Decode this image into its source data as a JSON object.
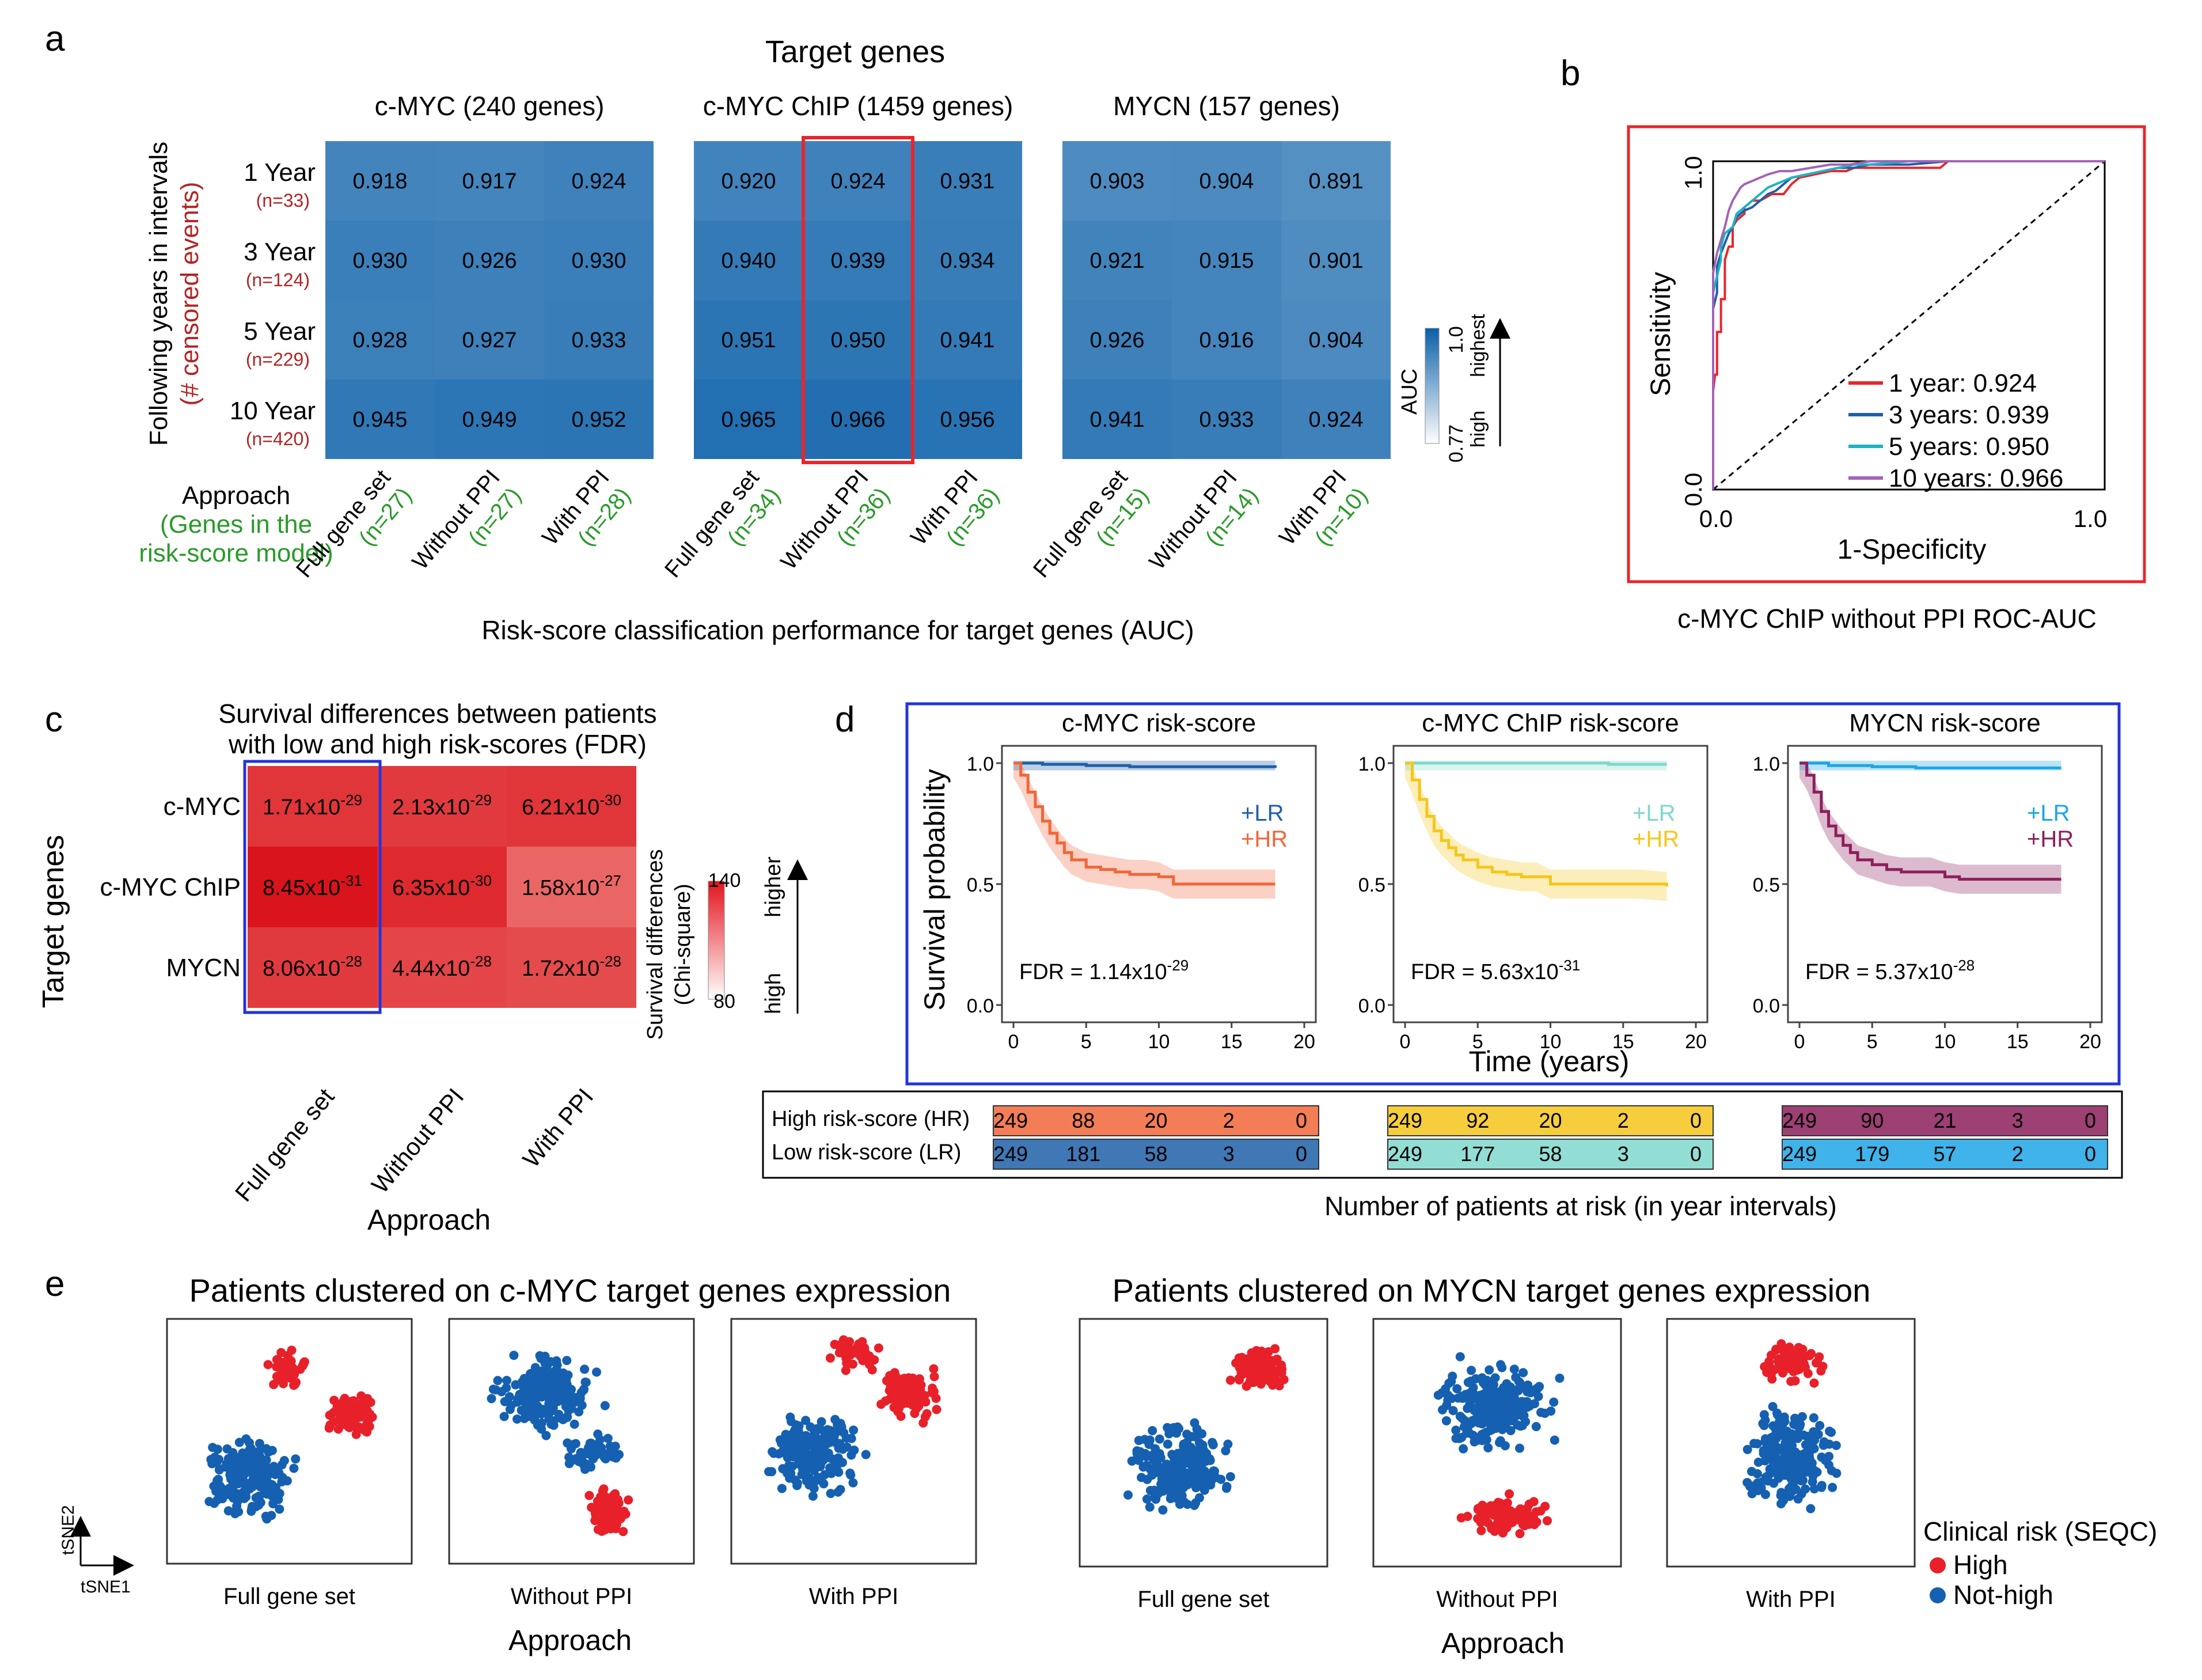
{
  "panel_letters": [
    "a",
    "b",
    "c",
    "d",
    "e"
  ],
  "chart_data": [
    {
      "panel": "a",
      "type": "heatmap",
      "title": "Target genes",
      "xlabel": "Risk-score classification performance for target genes (AUC)",
      "ylabel": "Following years in intervals",
      "ylabel2": "(# censored events)",
      "approach_label": "Approach",
      "approach_sub1": "(Genes in the",
      "approach_sub2": "risk-score model)",
      "rows": [
        {
          "label": "1 Year",
          "n": "(n=33)"
        },
        {
          "label": "3 Year",
          "n": "(n=124)"
        },
        {
          "label": "5 Year",
          "n": "(n=229)"
        },
        {
          "label": "10 Year",
          "n": "(n=420)"
        }
      ],
      "color_range": [
        0.77,
        1.0
      ],
      "legend": {
        "title": "AUC",
        "max_label": "1.0",
        "min_label": "0.77",
        "up_label": "highest",
        "down_label": "high"
      },
      "blocks": [
        {
          "title": "c-MYC (240 genes)",
          "columns": [
            {
              "name": "Full gene set",
              "n": "(n=27)"
            },
            {
              "name": "Without PPI",
              "n": "(n=27)"
            },
            {
              "name": "With PPI",
              "n": "(n=28)"
            }
          ],
          "values": [
            [
              0.918,
              0.917,
              0.924
            ],
            [
              0.93,
              0.926,
              0.93
            ],
            [
              0.928,
              0.927,
              0.933
            ],
            [
              0.945,
              0.949,
              0.952
            ]
          ]
        },
        {
          "title": "c-MYC ChIP (1459 genes)",
          "columns": [
            {
              "name": "Full gene set",
              "n": "(n=34)"
            },
            {
              "name": "Without PPI",
              "n": "(n=36)"
            },
            {
              "name": "With PPI",
              "n": "(n=36)"
            }
          ],
          "values": [
            [
              0.92,
              0.924,
              0.931
            ],
            [
              0.94,
              0.939,
              0.934
            ],
            [
              0.951,
              0.95,
              0.941
            ],
            [
              0.965,
              0.966,
              0.956
            ]
          ],
          "highlight_col": 1
        },
        {
          "title": "MYCN (157 genes)",
          "columns": [
            {
              "name": "Full gene set",
              "n": "(n=15)"
            },
            {
              "name": "Without PPI",
              "n": "(n=14)"
            },
            {
              "name": "With PPI",
              "n": "(n=10)"
            }
          ],
          "values": [
            [
              0.903,
              0.904,
              0.891
            ],
            [
              0.921,
              0.915,
              0.901
            ],
            [
              0.926,
              0.916,
              0.904
            ],
            [
              0.941,
              0.933,
              0.924
            ]
          ]
        }
      ]
    },
    {
      "panel": "b",
      "type": "line",
      "xlabel": "1-Specificity",
      "ylabel": "Sensitivity",
      "xlim": [
        0,
        1
      ],
      "ylim": [
        0,
        1
      ],
      "x_ticks": [
        "0.0",
        "1.0"
      ],
      "y_ticks": [
        "0.0",
        "1.0"
      ],
      "caption": "c-MYC ChIP without PPI ROC-AUC",
      "series": [
        {
          "name": "1 year: 0.924",
          "color": "#e8262b",
          "x": [
            0,
            0,
            0.005,
            0.01,
            0.01,
            0.02,
            0.02,
            0.03,
            0.03,
            0.04,
            0.05,
            0.05,
            0.06,
            0.08,
            0.08,
            0.1,
            0.12,
            0.15,
            0.18,
            0.2,
            0.22,
            0.26,
            0.3,
            0.34,
            0.36,
            0.4,
            0.45,
            0.5,
            0.55,
            0.58,
            0.6,
            0.65,
            0.7,
            0.8,
            0.9,
            1
          ],
          "y": [
            0,
            0.3,
            0.35,
            0.35,
            0.48,
            0.48,
            0.58,
            0.58,
            0.7,
            0.74,
            0.74,
            0.8,
            0.82,
            0.84,
            0.86,
            0.88,
            0.88,
            0.9,
            0.9,
            0.93,
            0.95,
            0.96,
            0.97,
            0.97,
            0.98,
            0.98,
            0.98,
            0.98,
            0.98,
            0.98,
            1,
            1,
            1,
            1,
            1,
            1
          ]
        },
        {
          "name": "3 years: 0.939",
          "color": "#1f5fa8",
          "x": [
            0,
            0,
            0.01,
            0.01,
            0.02,
            0.03,
            0.04,
            0.05,
            0.06,
            0.08,
            0.1,
            0.12,
            0.14,
            0.16,
            0.18,
            0.2,
            0.24,
            0.28,
            0.32,
            0.36,
            0.4,
            0.5,
            0.6,
            0.7,
            0.8,
            1
          ],
          "y": [
            0,
            0.55,
            0.6,
            0.68,
            0.72,
            0.75,
            0.78,
            0.8,
            0.83,
            0.85,
            0.86,
            0.88,
            0.9,
            0.91,
            0.93,
            0.95,
            0.96,
            0.97,
            0.98,
            0.98,
            0.99,
            0.99,
            1,
            1,
            1,
            1
          ]
        },
        {
          "name": "5 years: 0.950",
          "color": "#1fb3c2",
          "x": [
            0,
            0,
            0.01,
            0.02,
            0.02,
            0.03,
            0.05,
            0.06,
            0.08,
            0.1,
            0.12,
            0.14,
            0.16,
            0.2,
            0.24,
            0.28,
            0.32,
            0.36,
            0.4,
            0.5,
            0.6,
            0.7,
            1
          ],
          "y": [
            0,
            0.6,
            0.65,
            0.7,
            0.74,
            0.78,
            0.8,
            0.84,
            0.86,
            0.88,
            0.9,
            0.92,
            0.93,
            0.95,
            0.96,
            0.97,
            0.98,
            0.99,
            0.99,
            1,
            1,
            1,
            1
          ]
        },
        {
          "name": "10 years: 0.966",
          "color": "#a363b6",
          "x": [
            0,
            0,
            0.01,
            0.02,
            0.03,
            0.04,
            0.05,
            0.06,
            0.07,
            0.08,
            0.1,
            0.12,
            0.14,
            0.17,
            0.2,
            0.25,
            0.3,
            0.35,
            0.4,
            0.5,
            0.6,
            0.8,
            1
          ],
          "y": [
            0,
            0.66,
            0.72,
            0.76,
            0.8,
            0.85,
            0.88,
            0.9,
            0.92,
            0.93,
            0.94,
            0.95,
            0.96,
            0.97,
            0.97,
            0.98,
            0.99,
            0.99,
            1,
            1,
            1,
            1,
            1
          ]
        }
      ]
    },
    {
      "panel": "c",
      "type": "heatmap",
      "title_line1": "Survival differences between patients",
      "title_line2": "with low and high risk-scores (FDR)",
      "ylabel": "Target genes",
      "xlabel": "Approach",
      "rows": [
        "c-MYC",
        "c-MYC ChIP",
        "MYCN"
      ],
      "columns": [
        "Full gene set",
        "Without PPI",
        "With PPI"
      ],
      "mantissa": [
        [
          "1.71",
          "2.13",
          "6.21"
        ],
        [
          "8.45",
          "6.35",
          "1.58"
        ],
        [
          "8.06",
          "4.44",
          "1.72"
        ]
      ],
      "exponent": [
        [
          "-29",
          "-29",
          "-30"
        ],
        [
          "-31",
          "-30",
          "-27"
        ],
        [
          "-28",
          "-28",
          "-28"
        ]
      ],
      "chi_square": [
        [
          128,
          126,
          128
        ],
        [
          140,
          132,
          110
        ],
        [
          126,
          122,
          120
        ]
      ],
      "color_range": [
        80,
        140
      ],
      "legend": {
        "title_line1": "Survival differences",
        "title_line2": "(Chi-square)",
        "max_label": "140",
        "min_label": "80",
        "up_label": "higher",
        "down_label": "high"
      },
      "highlight_col": 0
    },
    {
      "panel": "d",
      "type": "line",
      "xlabel": "Time (years)",
      "ylabel": "Survival probability",
      "xlim": [
        0,
        20
      ],
      "ylim": [
        0,
        1
      ],
      "x_ticks": [
        "0",
        "5",
        "10",
        "15",
        "20"
      ],
      "y_ticks": [
        "0.0",
        "0.5",
        "1.0"
      ],
      "subplots": [
        {
          "title": "c-MYC risk-score",
          "fdr_mantissa": "1.14",
          "fdr_exp": "-29",
          "lr_color": "#1f5fa8",
          "hr_color": "#f0663a",
          "lr": {
            "x": [
              0,
              2,
              5,
              8,
              12,
              18
            ],
            "y": [
              1,
              0.995,
              0.99,
              0.985,
              0.985,
              0.98
            ]
          },
          "hr": {
            "x": [
              0,
              0.5,
              1,
              1.5,
              2,
              2.5,
              3,
              3.5,
              4,
              5,
              6,
              7,
              8,
              9,
              10,
              11,
              12,
              14,
              16,
              18
            ],
            "y": [
              1,
              0.95,
              0.88,
              0.82,
              0.76,
              0.71,
              0.67,
              0.63,
              0.6,
              0.57,
              0.56,
              0.55,
              0.54,
              0.54,
              0.53,
              0.5,
              0.5,
              0.5,
              0.5,
              0.5
            ]
          },
          "lr_label": "LR",
          "hr_label": "HR"
        },
        {
          "title": "c-MYC ChIP risk-score",
          "fdr_mantissa": "5.63",
          "fdr_exp": "-31",
          "lr_color": "#7fd8cc",
          "hr_color": "#f5c61b",
          "lr": {
            "x": [
              0,
              3,
              6,
              10,
              14,
              18
            ],
            "y": [
              1,
              1,
              1,
              1,
              0.995,
              0.995
            ]
          },
          "hr": {
            "x": [
              0,
              0.5,
              1,
              1.5,
              2,
              2.5,
              3,
              3.5,
              4,
              5,
              6,
              7,
              8,
              9,
              10,
              11,
              12,
              14,
              16,
              18
            ],
            "y": [
              1,
              0.93,
              0.85,
              0.78,
              0.72,
              0.68,
              0.65,
              0.62,
              0.6,
              0.57,
              0.55,
              0.54,
              0.53,
              0.53,
              0.5,
              0.5,
              0.5,
              0.5,
              0.5,
              0.49
            ]
          },
          "lr_label": "LR",
          "hr_label": "HR"
        },
        {
          "title": "MYCN risk-score",
          "fdr_mantissa": "5.37",
          "fdr_exp": "-28",
          "lr_color": "#1da6e6",
          "hr_color": "#8c1f5c",
          "lr": {
            "x": [
              0,
              2,
              5,
              8,
              12,
              18
            ],
            "y": [
              1,
              0.99,
              0.985,
              0.98,
              0.98,
              0.98
            ]
          },
          "hr": {
            "x": [
              0,
              0.5,
              1,
              1.5,
              2,
              2.5,
              3,
              3.5,
              4,
              5,
              6,
              7,
              8,
              9,
              10,
              11,
              12,
              14,
              16,
              18
            ],
            "y": [
              1,
              0.95,
              0.88,
              0.8,
              0.74,
              0.7,
              0.66,
              0.63,
              0.6,
              0.58,
              0.56,
              0.55,
              0.55,
              0.55,
              0.53,
              0.52,
              0.52,
              0.52,
              0.52,
              0.52
            ]
          },
          "lr_label": "LR",
          "hr_label": "HR"
        }
      ],
      "risk_table": {
        "title": "Number of patients at risk (in year intervals)",
        "hr_label": "High risk-score (HR)",
        "lr_label": "Low risk-score (LR)",
        "groups": [
          {
            "hr": [
              "249",
              "88",
              "20",
              "2",
              "0"
            ],
            "lr": [
              "249",
              "181",
              "58",
              "3",
              "0"
            ]
          },
          {
            "hr": [
              "249",
              "92",
              "20",
              "2",
              "0"
            ],
            "lr": [
              "249",
              "177",
              "58",
              "3",
              "0"
            ]
          },
          {
            "hr": [
              "249",
              "90",
              "21",
              "3",
              "0"
            ],
            "lr": [
              "249",
              "179",
              "57",
              "2",
              "0"
            ]
          }
        ]
      }
    },
    {
      "panel": "e",
      "type": "scatter",
      "title_left": "Patients clustered on c-MYC target genes expression",
      "title_right": "Patients clustered on MYCN target genes expression",
      "xlabel": "Approach",
      "axis_x": "tSNE1",
      "axis_y": "tSNE2",
      "subplots": [
        "Full gene set",
        "Without PPI",
        "With PPI",
        "Full gene set",
        "Without PPI",
        "With PPI"
      ],
      "legend": {
        "title": "Clinical risk (SEQC)",
        "items": [
          {
            "name": "High",
            "color": "#e8202a"
          },
          {
            "name": "Not-high",
            "color": "#1560b0"
          }
        ]
      }
    }
  ]
}
